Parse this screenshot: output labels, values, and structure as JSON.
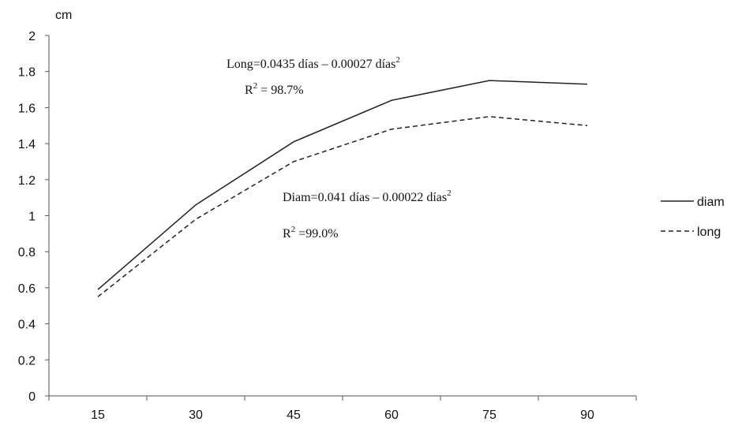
{
  "chart_data": {
    "type": "line",
    "ylabel": "cm",
    "x": [
      15,
      30,
      45,
      60,
      75,
      90
    ],
    "xticks": [
      "15",
      "30",
      "45",
      "60",
      "75",
      "90"
    ],
    "yticks": [
      "0",
      "0.2",
      "0.4",
      "0.6",
      "0.8",
      "1",
      "1.2",
      "1.4",
      "1.6",
      "1.8",
      "2"
    ],
    "ylim": [
      0,
      2
    ],
    "grid": false,
    "legend": "right",
    "series": [
      {
        "name": "diam",
        "style": "solid",
        "color": "#222222",
        "values": [
          0.59,
          1.06,
          1.41,
          1.64,
          1.75,
          1.73
        ]
      },
      {
        "name": "long",
        "style": "dashed",
        "color": "#222222",
        "values": [
          0.55,
          0.98,
          1.3,
          1.48,
          1.55,
          1.5
        ]
      }
    ],
    "annotations": {
      "long_eq": {
        "pre": "Long=0.0435 días – 0.00027 días",
        "sup": "2"
      },
      "long_r2": {
        "pre": "R",
        "sup": "2",
        "post": " = 98.7%"
      },
      "diam_eq": {
        "pre": "Diam=0.041 días – 0.00022 días",
        "sup": "2"
      },
      "diam_r2": {
        "pre": "R",
        "sup": "2",
        "post": " =99.0%"
      }
    }
  }
}
